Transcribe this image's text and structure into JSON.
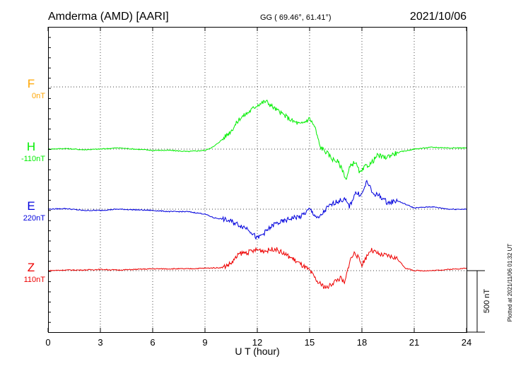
{
  "header": {
    "station": "Amderma (AMD)  [AARI]",
    "coords": "GG ( 69.46°,  61.41°)",
    "date": "2021/10/06"
  },
  "plot_note": "Plotted at 2021/11/06 01:32 UT",
  "scale_label": "500 nT",
  "chart_data": {
    "type": "line",
    "title": "Amderma (AMD)  [AARI]",
    "xlabel": "U T (hour)",
    "xlim": [
      0,
      24
    ],
    "xticks": [
      "0",
      "3",
      "6",
      "9",
      "12",
      "15",
      "18",
      "21",
      "24"
    ],
    "grid": true,
    "series": [
      {
        "name": "F",
        "baseline_label": "0nT",
        "color": "#ffa500",
        "values": []
      },
      {
        "name": "H",
        "baseline_label": "-110nT",
        "color": "#00ee00",
        "x": [
          0,
          1,
          2,
          3,
          4,
          5,
          6,
          7,
          8,
          9,
          9.5,
          10,
          10.5,
          11,
          11.5,
          12,
          12.5,
          13,
          13.5,
          14,
          14.5,
          15,
          15.3,
          15.6,
          16,
          16.3,
          16.6,
          16.9,
          17.1,
          17.3,
          17.6,
          17.9,
          18.2,
          18.5,
          18.9,
          19.3,
          19.8,
          20.3,
          21,
          22,
          23,
          24
        ],
        "values": [
          0,
          5,
          -5,
          0,
          10,
          0,
          -10,
          -10,
          -20,
          -10,
          20,
          80,
          150,
          250,
          300,
          360,
          390,
          330,
          280,
          230,
          200,
          250,
          180,
          20,
          -30,
          -80,
          -100,
          -170,
          -250,
          -150,
          -100,
          -200,
          -140,
          -120,
          -50,
          -70,
          -40,
          -20,
          0,
          15,
          10,
          10
        ]
      },
      {
        "name": "E",
        "baseline_label": "220nT",
        "color": "#0000dd",
        "x": [
          0,
          1,
          2,
          3,
          4,
          5,
          6,
          7,
          8,
          9,
          9.5,
          10,
          10.5,
          11,
          11.5,
          12,
          12.5,
          13,
          13.5,
          14,
          14.5,
          15,
          15.5,
          16,
          16.5,
          17,
          17.3,
          17.6,
          18,
          18.3,
          18.6,
          19,
          19.5,
          20,
          21,
          22,
          23,
          24
        ],
        "values": [
          0,
          5,
          -10,
          -10,
          0,
          -5,
          -10,
          -20,
          -20,
          -40,
          -70,
          -80,
          -100,
          -130,
          -160,
          -240,
          -180,
          -120,
          -100,
          -70,
          -60,
          0,
          -80,
          10,
          60,
          80,
          20,
          130,
          120,
          230,
          130,
          110,
          50,
          70,
          10,
          20,
          0,
          0
        ]
      },
      {
        "name": "Z",
        "baseline_label": "110nT",
        "color": "#ee0000",
        "x": [
          0,
          1,
          2,
          3,
          4,
          5,
          6,
          7,
          8,
          9,
          10,
          10.5,
          11,
          11.5,
          12,
          12.5,
          13,
          13.5,
          14,
          14.5,
          15,
          15.5,
          16,
          16.5,
          16.8,
          17,
          17.3,
          17.6,
          18,
          18.5,
          19,
          19.5,
          20,
          20.5,
          21,
          22,
          23,
          24
        ],
        "values": [
          0,
          5,
          5,
          10,
          5,
          10,
          15,
          15,
          15,
          20,
          25,
          60,
          140,
          150,
          170,
          160,
          180,
          140,
          100,
          50,
          0,
          -100,
          -140,
          -80,
          -60,
          -110,
          80,
          150,
          50,
          170,
          130,
          120,
          100,
          20,
          0,
          0,
          10,
          20
        ]
      }
    ]
  }
}
